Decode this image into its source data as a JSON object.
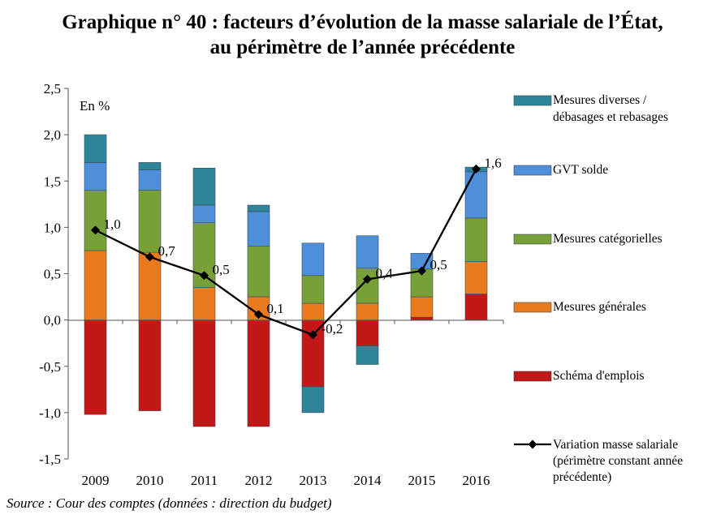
{
  "title": {
    "line1": "Graphique n° 40 : facteurs d’évolution de la masse salariale de l’État,",
    "line2": "au périmètre de l’année précédente"
  },
  "source": "Source : Cour des comptes (données : direction du budget)",
  "colors": {
    "mesures_diverses": "#2e8599",
    "gvt_solde": "#4f8fd9",
    "mesures_categorielles": "#77a038",
    "mesures_generales": "#ea7a1e",
    "schema_emplois": "#c41818",
    "variation": "#000000"
  },
  "chart_data": {
    "type": "bar",
    "stacked": true,
    "unit_label": "En %",
    "categories": [
      "2009",
      "2010",
      "2011",
      "2012",
      "2013",
      "2014",
      "2015",
      "2016"
    ],
    "ylim": [
      -1.5,
      2.5
    ],
    "yticks": [
      "2,5",
      "2,0",
      "1,5",
      "1,0",
      "0,5",
      "0,0",
      "-0,5",
      "-1,0",
      "-1,5"
    ],
    "ytick_values": [
      2.5,
      2.0,
      1.5,
      1.0,
      0.5,
      0.0,
      -0.5,
      -1.0,
      -1.5
    ],
    "grid": false,
    "legend_position": "right",
    "series": [
      {
        "name": "Mesures diverses / débasages et rebasages",
        "legend_lines": [
          "Mesures diverses /",
          "débasages et rebasages"
        ],
        "color_key": "mesures_diverses",
        "values": [
          0.3,
          0.08,
          0.4,
          0.07,
          -0.28,
          -0.2,
          0.0,
          0.05
        ]
      },
      {
        "name": "GVT solde",
        "legend_lines": [
          "GVT solde"
        ],
        "color_key": "gvt_solde",
        "values": [
          0.3,
          0.22,
          0.19,
          0.37,
          0.35,
          0.35,
          0.17,
          0.5
        ]
      },
      {
        "name": "Mesures catégorielles",
        "legend_lines": [
          "Mesures catégorielles"
        ],
        "color_key": "mesures_categorielles",
        "values": [
          0.65,
          0.67,
          0.7,
          0.55,
          0.3,
          0.38,
          0.3,
          0.47
        ]
      },
      {
        "name": "Mesures générales",
        "legend_lines": [
          "Mesures générales"
        ],
        "color_key": "mesures_generales",
        "values": [
          0.75,
          0.73,
          0.35,
          0.25,
          0.18,
          0.18,
          0.22,
          0.35
        ]
      },
      {
        "name": "Schéma d'emplois",
        "legend_lines": [
          "Schéma d'emplois"
        ],
        "color_key": "schema_emplois",
        "values": [
          -1.02,
          -0.98,
          -1.15,
          -1.15,
          -0.72,
          -0.28,
          0.03,
          0.28
        ]
      }
    ],
    "line_series": {
      "name": "Variation masse salariale (périmètre constant année précédente)",
      "legend_lines": [
        "Variation masse salariale",
        "(périmètre constant année",
        "précédente)"
      ],
      "values": [
        0.97,
        0.68,
        0.48,
        0.06,
        -0.16,
        0.44,
        0.53,
        1.63
      ],
      "labels": [
        "1,0",
        "0,7",
        "0,5",
        "0,1",
        "-0,2",
        "0,4",
        "0,5",
        "1,6"
      ]
    }
  }
}
